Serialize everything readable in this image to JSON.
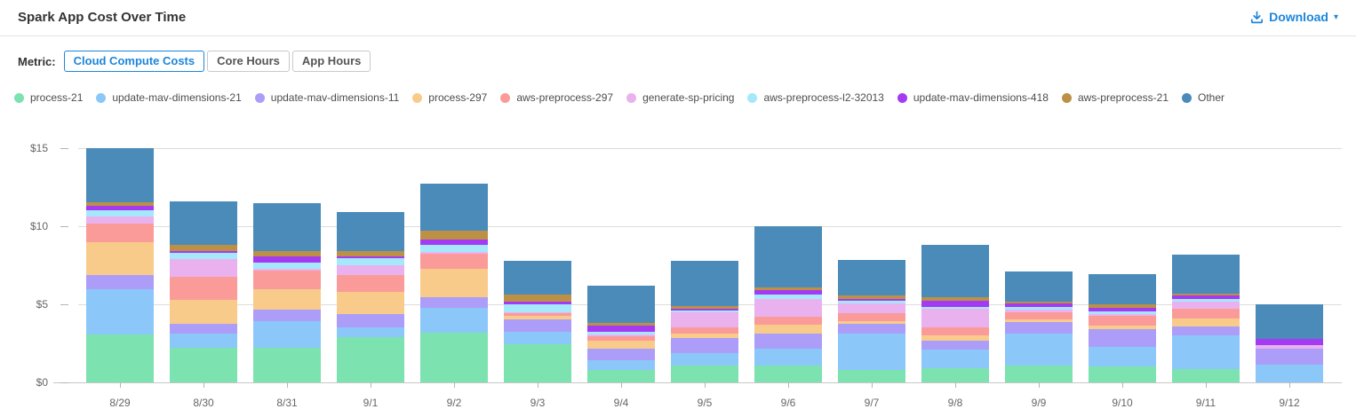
{
  "header": {
    "title": "Spark App Cost Over Time",
    "download_label": "Download",
    "download_caret": "▾"
  },
  "metric_selector": {
    "label": "Metric:",
    "options": [
      {
        "label": "Cloud Compute Costs",
        "active": true
      },
      {
        "label": "Core Hours",
        "active": false
      },
      {
        "label": "App Hours",
        "active": false
      }
    ]
  },
  "theme": {
    "accent_blue": "#1C86DB",
    "grid_color": "#dcdcdc",
    "axis_text_color": "#666666",
    "title_text_color": "#333333",
    "legend_text_color": "#4d4d4d"
  },
  "chart_data": {
    "type": "bar",
    "stacked": true,
    "title": "Spark App Cost Over Time",
    "xlabel": "",
    "ylabel": "",
    "ylim": [
      0,
      15
    ],
    "grid": true,
    "legend_position": "top",
    "value_unit": "USD",
    "y_axis": {
      "ticks": [
        {
          "value": 0,
          "label": "$0"
        },
        {
          "value": 5,
          "label": "$5"
        },
        {
          "value": 10,
          "label": "$10"
        },
        {
          "value": 15,
          "label": "$15"
        }
      ]
    },
    "x": [
      "8/29",
      "8/30",
      "8/31",
      "9/1",
      "9/2",
      "9/3",
      "9/4",
      "9/5",
      "9/6",
      "9/7",
      "9/8",
      "9/9",
      "9/10",
      "9/11",
      "9/12"
    ],
    "series": [
      {
        "name": "process-21",
        "color": "#7CE2B0",
        "values": [
          3.05,
          2.2,
          2.2,
          2.9,
          3.2,
          2.45,
          0.8,
          1.1,
          1.1,
          0.8,
          0.9,
          1.1,
          1.05,
          0.85,
          0.0
        ]
      },
      {
        "name": "update-mav-dimensions-21",
        "color": "#8CC7FA",
        "values": [
          2.9,
          0.9,
          1.7,
          0.65,
          1.55,
          0.8,
          0.6,
          0.8,
          1.05,
          2.3,
          1.2,
          2.05,
          1.25,
          2.15,
          1.15
        ]
      },
      {
        "name": "update-mav-dimensions-11",
        "color": "#AB9DF8",
        "values": [
          0.95,
          0.65,
          0.75,
          0.85,
          0.7,
          0.8,
          0.75,
          0.95,
          1.0,
          0.65,
          0.6,
          0.7,
          1.1,
          0.6,
          1.0
        ]
      },
      {
        "name": "process-297",
        "color": "#F9CB8B",
        "values": [
          2.1,
          1.55,
          1.3,
          1.4,
          1.8,
          0.2,
          0.55,
          0.25,
          0.55,
          0.2,
          0.3,
          0.2,
          0.25,
          0.5,
          0.0
        ]
      },
      {
        "name": "aws-preprocess-297",
        "color": "#FB9B99",
        "values": [
          1.15,
          1.45,
          1.2,
          1.1,
          1.0,
          0.2,
          0.25,
          0.4,
          0.5,
          0.5,
          0.55,
          0.45,
          0.6,
          0.6,
          0.0
        ]
      },
      {
        "name": "generate-sp-pricing",
        "color": "#E9B2EE",
        "values": [
          0.5,
          1.15,
          0.15,
          0.6,
          0.1,
          0.05,
          0.1,
          1.0,
          1.15,
          0.6,
          1.15,
          0.15,
          0.1,
          0.5,
          0.25
        ]
      },
      {
        "name": "aws-preprocess-l2-32013",
        "color": "#A6E8FB",
        "values": [
          0.4,
          0.4,
          0.35,
          0.45,
          0.45,
          0.5,
          0.2,
          0.1,
          0.25,
          0.2,
          0.15,
          0.2,
          0.2,
          0.15,
          0.0
        ]
      },
      {
        "name": "update-mav-dimensions-418",
        "color": "#A43BF2",
        "values": [
          0.25,
          0.1,
          0.4,
          0.15,
          0.35,
          0.15,
          0.4,
          0.1,
          0.3,
          0.1,
          0.4,
          0.2,
          0.25,
          0.2,
          0.4
        ]
      },
      {
        "name": "aws-preprocess-21",
        "color": "#BC9146",
        "values": [
          0.25,
          0.4,
          0.35,
          0.3,
          0.55,
          0.5,
          0.15,
          0.2,
          0.2,
          0.2,
          0.2,
          0.15,
          0.2,
          0.15,
          0.0
        ]
      },
      {
        "name": "Other",
        "color": "#4A8BBA",
        "values": [
          3.45,
          2.8,
          3.1,
          2.5,
          3.05,
          2.15,
          2.4,
          2.9,
          3.9,
          2.3,
          3.35,
          1.9,
          1.95,
          2.5,
          2.2
        ]
      }
    ]
  }
}
